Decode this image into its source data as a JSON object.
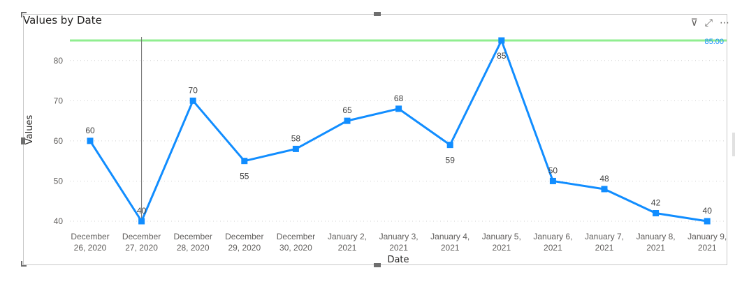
{
  "visual": {
    "title": "Values by Date",
    "icons": [
      "filter-icon",
      "focus-mode-icon",
      "more-options-icon"
    ]
  },
  "chart_data": {
    "type": "line",
    "xlabel": "Date",
    "ylabel": "Values",
    "ylim": [
      38,
      87
    ],
    "yticks": [
      40,
      50,
      60,
      70,
      80
    ],
    "grid": true,
    "categories": [
      [
        "December",
        "26, 2020"
      ],
      [
        "December",
        "27, 2020"
      ],
      [
        "December",
        "28, 2020"
      ],
      [
        "December",
        "29, 2020"
      ],
      [
        "December",
        "30, 2020"
      ],
      [
        "January 2,",
        "2021"
      ],
      [
        "January 3,",
        "2021"
      ],
      [
        "January 4,",
        "2021"
      ],
      [
        "January 5,",
        "2021"
      ],
      [
        "January 6,",
        "2021"
      ],
      [
        "January 7,",
        "2021"
      ],
      [
        "January 8,",
        "2021"
      ],
      [
        "January 9,",
        "2021"
      ]
    ],
    "series": [
      {
        "values": [
          60,
          40,
          70,
          55,
          58,
          65,
          68,
          59,
          85,
          50,
          48,
          42,
          40
        ]
      }
    ],
    "data_label_positions": [
      "above",
      "above",
      "above",
      "below",
      "above",
      "above",
      "above",
      "below",
      "below",
      "above",
      "above",
      "above",
      "above"
    ],
    "reference_line": {
      "value": 85,
      "label": "85.00"
    },
    "hover_index": 1,
    "colors": {
      "line": "#118dff",
      "reference": "#90ee90",
      "grid": "#d0d0d0",
      "hover": "#6e6e6e"
    }
  }
}
